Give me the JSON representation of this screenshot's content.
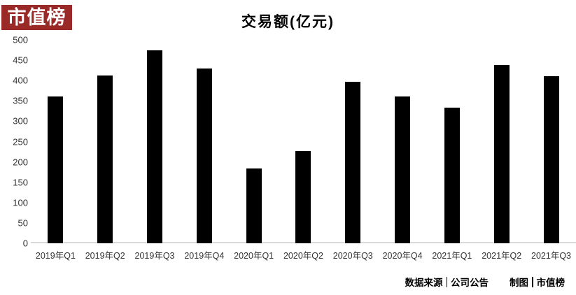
{
  "logo": {
    "text": "市值榜",
    "bg_color": "#9A2A28",
    "text_color": "#FFFFFF"
  },
  "chart_data": {
    "type": "bar",
    "title": "交易额(亿元)",
    "categories": [
      "2019年Q1",
      "2019年Q2",
      "2019年Q3",
      "2019年Q4",
      "2020年Q1",
      "2020年Q2",
      "2020年Q3",
      "2020年Q4",
      "2021年Q1",
      "2021年Q2",
      "2021年Q3"
    ],
    "values": [
      360,
      412,
      474,
      430,
      184,
      227,
      397,
      361,
      333,
      438,
      410
    ],
    "xlabel": "",
    "ylabel": "",
    "ylim": [
      0,
      500
    ],
    "yticks": [
      0,
      50,
      100,
      150,
      200,
      250,
      300,
      350,
      400,
      450,
      500
    ],
    "grid": false,
    "legend_position": "none",
    "bar_color": "#000000",
    "axis_line_color": "#D9D9D9"
  },
  "footer": {
    "source_label": "数据来源",
    "source_value": "公司公告",
    "credit_label": "制图",
    "credit_value": "市值榜",
    "separator": "|"
  }
}
